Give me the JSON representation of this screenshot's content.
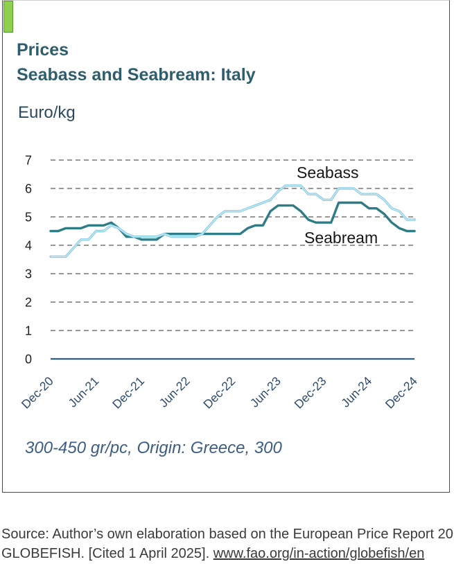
{
  "chart_data": {
    "type": "line",
    "title": "Prices",
    "subtitle": "Seabass and Seabream: Italy",
    "ylabel": "Euro/kg",
    "note": "300-450 gr/pc, Origin: Greece, 300",
    "ylim": [
      0,
      7
    ],
    "yticks": [
      0,
      1,
      2,
      3,
      4,
      5,
      6,
      7
    ],
    "grid": true,
    "x": [
      "Dec-20",
      "Jan-21",
      "Feb-21",
      "Mar-21",
      "Apr-21",
      "May-21",
      "Jun-21",
      "Jul-21",
      "Aug-21",
      "Sep-21",
      "Oct-21",
      "Nov-21",
      "Dec-21",
      "Jan-22",
      "Feb-22",
      "Mar-22",
      "Apr-22",
      "May-22",
      "Jun-22",
      "Jul-22",
      "Aug-22",
      "Sep-22",
      "Oct-22",
      "Nov-22",
      "Dec-22",
      "Jan-23",
      "Feb-23",
      "Mar-23",
      "Apr-23",
      "May-23",
      "Jun-23",
      "Jul-23",
      "Aug-23",
      "Sep-23",
      "Oct-23",
      "Nov-23",
      "Dec-23",
      "Jan-24",
      "Feb-24",
      "Mar-24",
      "Apr-24",
      "May-24",
      "Jun-24",
      "Jul-24",
      "Aug-24",
      "Sep-24",
      "Oct-24",
      "Nov-24",
      "Dec-24"
    ],
    "x_ticks": [
      "Dec-20",
      "Jun-21",
      "Dec-21",
      "Jun-22",
      "Dec-22",
      "Jun-23",
      "Dec-23",
      "Jun-24",
      "Dec-24"
    ],
    "series": [
      {
        "name": "Seabream",
        "color": "#2e7c85",
        "values": [
          4.5,
          4.5,
          4.6,
          4.6,
          4.6,
          4.7,
          4.7,
          4.7,
          4.8,
          4.6,
          4.3,
          4.3,
          4.2,
          4.2,
          4.2,
          4.4,
          4.4,
          4.4,
          4.4,
          4.4,
          4.4,
          4.4,
          4.4,
          4.4,
          4.4,
          4.4,
          4.6,
          4.7,
          4.7,
          5.2,
          5.4,
          5.4,
          5.4,
          5.2,
          4.9,
          4.8,
          4.8,
          4.8,
          5.5,
          5.5,
          5.5,
          5.5,
          5.3,
          5.3,
          5.1,
          4.8,
          4.6,
          4.5,
          4.5
        ]
      },
      {
        "name": "Seabass",
        "color": "#86cbe4",
        "values": [
          3.6,
          3.6,
          3.6,
          3.9,
          4.2,
          4.2,
          4.5,
          4.5,
          4.7,
          4.6,
          4.4,
          4.3,
          4.3,
          4.3,
          4.3,
          4.4,
          4.3,
          4.3,
          4.3,
          4.3,
          4.4,
          4.7,
          5.0,
          5.2,
          5.2,
          5.2,
          5.3,
          5.4,
          5.5,
          5.6,
          5.9,
          6.1,
          6.1,
          6.1,
          5.8,
          5.8,
          5.6,
          5.6,
          6.0,
          6.0,
          6.0,
          5.8,
          5.8,
          5.8,
          5.6,
          5.3,
          5.2,
          4.9,
          4.9
        ]
      }
    ]
  },
  "caption": {
    "source_text": "Source: Author’s own elaboration based on the European Price Report 20",
    "cited_text": "GLOBEFISH. [Cited 1 April 2025]. ",
    "link_text": "www.fao.org/in-action/globefish/en"
  },
  "colors": {
    "title_text": "#2e5e6e",
    "accent_bar": "#8fd14f",
    "x_axis_line": "#2f5e8e",
    "gridline": "#8a8a8a"
  }
}
